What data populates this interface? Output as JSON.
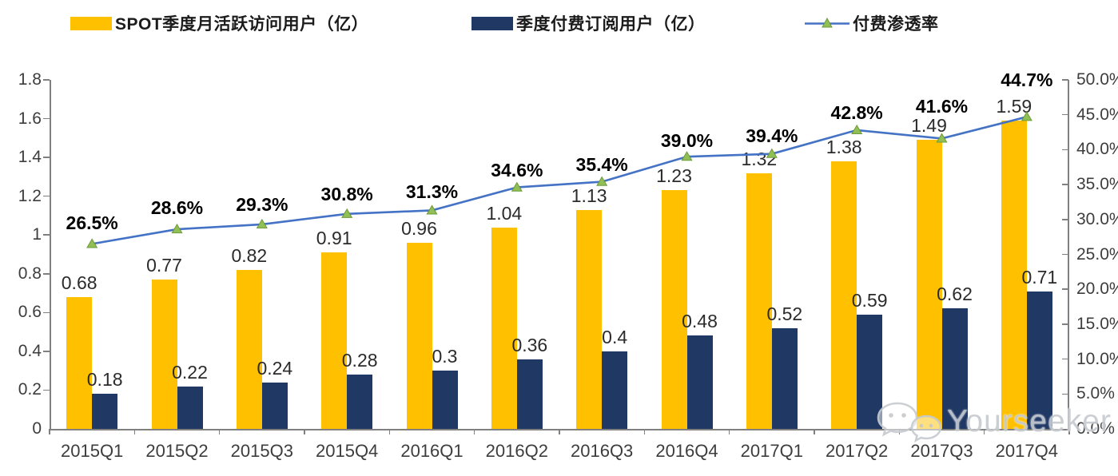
{
  "legend": [
    {
      "label": "SPOT季度月活跃访问用户（亿）",
      "swatch": "bar",
      "color": "#FFC000"
    },
    {
      "label": "季度付费订阅用户（亿）",
      "swatch": "bar",
      "color": "#1F3864"
    },
    {
      "label": "付费渗透率",
      "swatch": "line-marker",
      "line_color": "#4472C4",
      "marker_color": "#8FBF55"
    }
  ],
  "chart_data": {
    "type": "combo-bar-line",
    "categories": [
      "2015Q1",
      "2015Q2",
      "2015Q3",
      "2015Q4",
      "2016Q1",
      "2016Q2",
      "2016Q3",
      "2016Q4",
      "2017Q1",
      "2017Q2",
      "2017Q3",
      "2017Q4"
    ],
    "series": [
      {
        "name": "SPOT季度月活跃访问用户（亿）",
        "type": "bar",
        "axis": "left",
        "color": "#FFC000",
        "values": [
          0.68,
          0.77,
          0.82,
          0.91,
          0.96,
          1.04,
          1.13,
          1.23,
          1.32,
          1.38,
          1.49,
          1.59
        ],
        "labels": [
          "0.68",
          "0.77",
          "0.82",
          "0.91",
          "0.96",
          "1.04",
          "1.13",
          "1.23",
          "1.32",
          "1.38",
          "1.49",
          "1.59"
        ]
      },
      {
        "name": "季度付费订阅用户（亿）",
        "type": "bar",
        "axis": "left",
        "color": "#1F3864",
        "values": [
          0.18,
          0.22,
          0.24,
          0.28,
          0.3,
          0.36,
          0.4,
          0.48,
          0.52,
          0.59,
          0.62,
          0.71
        ],
        "labels": [
          "0.18",
          "0.22",
          "0.24",
          "0.28",
          "0.3",
          "0.36",
          "0.4",
          "0.48",
          "0.52",
          "0.59",
          "0.62",
          "0.71"
        ]
      },
      {
        "name": "付费渗透率",
        "type": "line",
        "axis": "right",
        "color": "#4472C4",
        "marker": "triangle-up",
        "marker_color": "#8FBF55",
        "marker_edge": "#6F9A3C",
        "values": [
          26.5,
          28.6,
          29.3,
          30.8,
          31.3,
          34.6,
          35.4,
          39.0,
          39.4,
          42.8,
          41.6,
          44.7
        ],
        "labels": [
          "26.5%",
          "28.6%",
          "29.3%",
          "30.8%",
          "31.3%",
          "34.6%",
          "35.4%",
          "39.0%",
          "39.4%",
          "42.8%",
          "41.6%",
          "44.7%"
        ]
      }
    ],
    "left_axis": {
      "min": 0,
      "max": 1.8,
      "step": 0.2,
      "ticks": [
        "0",
        "0.2",
        "0.4",
        "0.6",
        "0.8",
        "1",
        "1.2",
        "1.4",
        "1.6",
        "1.8"
      ]
    },
    "right_axis": {
      "min": 0,
      "max": 50,
      "step": 5,
      "ticks": [
        "0.0%",
        "5.0%",
        "10.0%",
        "15.0%",
        "20.0%",
        "25.0%",
        "30.0%",
        "35.0%",
        "40.0%",
        "45.0%",
        "50.0%"
      ]
    },
    "layout": {
      "grid": false,
      "legend_position": "top",
      "pct_label_dy": [
        -39,
        -40,
        -38,
        -38,
        -36,
        -35,
        -35,
        -33,
        -36,
        -35,
        -53,
        -59
      ]
    }
  },
  "watermark": {
    "text": "Yourseeker",
    "icon": "wechat-icon"
  }
}
